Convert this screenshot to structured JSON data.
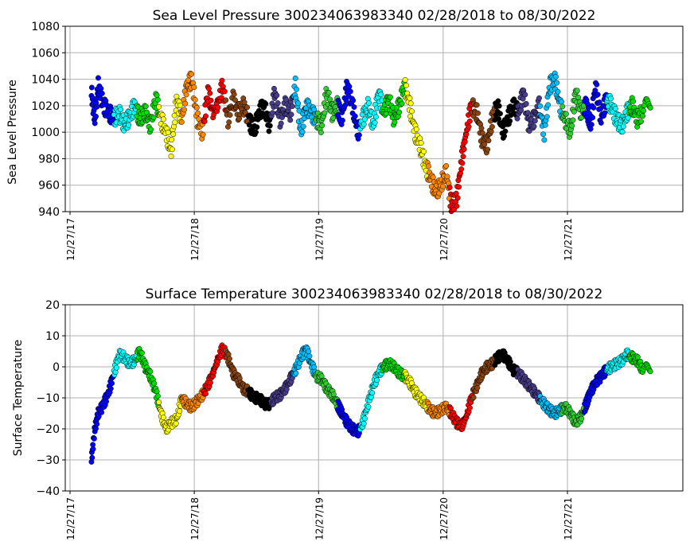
{
  "chart_data": [
    {
      "type": "scatter",
      "title": "Sea Level Pressure 300234063983340  02/28/2018 to 08/30/2022",
      "xlabel": "",
      "ylabel": "Sea Level Pressure",
      "xlim": [
        "2017-12-13",
        "2022-12-01"
      ],
      "ylim": [
        940,
        1080
      ],
      "yticks": [
        "940",
        "960",
        "980",
        "1000",
        "1020",
        "1040",
        "1060",
        "1080"
      ],
      "xticks": [
        "12/27/17",
        "12/27/18",
        "12/27/19",
        "12/27/20",
        "12/27/21"
      ],
      "grid": true,
      "legend": "none",
      "colors": [
        "#0000ff",
        "#00ffff",
        "#00dd00",
        "#ffff00",
        "#ff8800",
        "#ff0000",
        "#8b4513",
        "#000000",
        "#483d8b",
        "#00bfff",
        "#32cd32"
      ],
      "series": [
        {
          "x": [
            "2018-02-28",
            "2018-03-10",
            "2018-03-20",
            "2018-04-05",
            "2018-04-20",
            "2018-05-05",
            "2018-05-20",
            "2018-06-05",
            "2018-06-20",
            "2018-07-05",
            "2018-07-20",
            "2018-08-05",
            "2018-08-20",
            "2018-09-05",
            "2018-09-20",
            "2018-10-05",
            "2018-10-20",
            "2018-11-05",
            "2018-11-20",
            "2018-12-05",
            "2018-12-20",
            "2019-01-05",
            "2019-01-20",
            "2019-02-05",
            "2019-02-20",
            "2019-03-05",
            "2019-03-20",
            "2019-04-05",
            "2019-04-20",
            "2019-05-05",
            "2019-05-20",
            "2019-06-05",
            "2019-06-20",
            "2019-07-05",
            "2019-07-20",
            "2019-08-05",
            "2019-08-20",
            "2019-09-05",
            "2019-09-20",
            "2019-10-05",
            "2019-10-20",
            "2019-11-05",
            "2019-11-20",
            "2019-12-05",
            "2019-12-20",
            "2020-01-05",
            "2020-01-20",
            "2020-02-05",
            "2020-02-20",
            "2020-03-05",
            "2020-03-20",
            "2020-04-05",
            "2020-04-20",
            "2020-05-05",
            "2020-05-20",
            "2020-06-05",
            "2020-06-20",
            "2020-07-05",
            "2020-07-20",
            "2020-08-05",
            "2020-08-20",
            "2020-09-05",
            "2020-09-20",
            "2020-10-05",
            "2020-10-20",
            "2020-11-05",
            "2020-11-20",
            "2020-12-05",
            "2020-12-20",
            "2021-01-05",
            "2021-01-20",
            "2021-02-05",
            "2021-02-20",
            "2021-03-05",
            "2021-03-20",
            "2021-04-05",
            "2021-04-20",
            "2021-05-05",
            "2021-05-20",
            "2021-06-05",
            "2021-06-20",
            "2021-07-05",
            "2021-07-20",
            "2021-08-05",
            "2021-08-20",
            "2021-09-05",
            "2021-09-20",
            "2021-10-05",
            "2021-10-20",
            "2021-11-05",
            "2021-11-20",
            "2021-12-05",
            "2021-12-20",
            "2022-01-05",
            "2022-01-20",
            "2022-02-05",
            "2022-02-20",
            "2022-03-05",
            "2022-03-20",
            "2022-04-05",
            "2022-04-20",
            "2022-05-05",
            "2022-05-20",
            "2022-06-05",
            "2022-06-20",
            "2022-07-05",
            "2022-07-20",
            "2022-08-05",
            "2022-08-30"
          ],
          "y": [
            1030,
            1010,
            1035,
            1020,
            1015,
            1010,
            1015,
            1005,
            1012,
            1020,
            1010,
            1015,
            1005,
            1025,
            1010,
            1000,
            985,
            1025,
            1010,
            1035,
            1040,
            1010,
            1000,
            1030,
            1015,
            1020,
            1035,
            1010,
            1025,
            1015,
            1020,
            1010,
            1000,
            1015,
            1020,
            1005,
            1030,
            1010,
            1020,
            1015,
            1035,
            1000,
            1020,
            1015,
            1010,
            1005,
            1030,
            1015,
            1020,
            1010,
            1035,
            1020,
            1000,
            1010,
            1020,
            1005,
            1030,
            1015,
            1025,
            1010,
            1020,
            1035,
            1020,
            1000,
            990,
            975,
            965,
            955,
            960,
            970,
            945,
            950,
            980,
            1000,
            1020,
            1015,
            995,
            990,
            1010,
            1020,
            1000,
            1010,
            1020,
            1015,
            1030,
            1005,
            1010,
            1020,
            1000,
            1035,
            1040,
            1020,
            1010,
            1000,
            1030,
            1015,
            1020,
            1005,
            1035,
            1010,
            1025,
            1020,
            1010,
            1005,
            1015,
            1020,
            1010,
            1015,
            1025
          ],
          "color_groups": 25
        }
      ]
    },
    {
      "type": "scatter",
      "title": "Surface Temperature 300234063983340  02/28/2018 to 08/30/2022",
      "xlabel": "",
      "ylabel": "Surface Temperature",
      "xlim": [
        "2017-12-13",
        "2022-12-01"
      ],
      "ylim": [
        -40,
        20
      ],
      "yticks": [
        "−40",
        "−30",
        "−20",
        "−10",
        "0",
        "10",
        "20"
      ],
      "xticks": [
        "12/27/17",
        "12/27/18",
        "12/27/19",
        "12/27/20",
        "12/27/21"
      ],
      "grid": true,
      "legend": "none",
      "series": [
        {
          "x": [
            "2018-02-28",
            "2018-03-10",
            "2018-03-20",
            "2018-04-05",
            "2018-04-20",
            "2018-05-05",
            "2018-05-20",
            "2018-06-05",
            "2018-06-20",
            "2018-07-05",
            "2018-07-20",
            "2018-08-05",
            "2018-08-20",
            "2018-09-05",
            "2018-09-20",
            "2018-10-05",
            "2018-10-20",
            "2018-11-05",
            "2018-11-20",
            "2018-12-05",
            "2018-12-20",
            "2019-01-05",
            "2019-01-20",
            "2019-02-05",
            "2019-02-20",
            "2019-03-05",
            "2019-03-20",
            "2019-04-05",
            "2019-04-20",
            "2019-05-05",
            "2019-05-20",
            "2019-06-05",
            "2019-06-20",
            "2019-07-05",
            "2019-07-20",
            "2019-08-05",
            "2019-08-20",
            "2019-09-05",
            "2019-09-20",
            "2019-10-05",
            "2019-10-20",
            "2019-11-05",
            "2019-11-20",
            "2019-12-05",
            "2019-12-20",
            "2020-01-05",
            "2020-01-20",
            "2020-02-05",
            "2020-02-20",
            "2020-03-05",
            "2020-03-20",
            "2020-04-05",
            "2020-04-20",
            "2020-05-05",
            "2020-05-20",
            "2020-06-05",
            "2020-06-20",
            "2020-07-05",
            "2020-07-20",
            "2020-08-05",
            "2020-08-20",
            "2020-09-05",
            "2020-09-20",
            "2020-10-05",
            "2020-10-20",
            "2020-11-05",
            "2020-11-20",
            "2020-12-05",
            "2020-12-20",
            "2021-01-05",
            "2021-01-20",
            "2021-02-05",
            "2021-02-20",
            "2021-03-05",
            "2021-03-20",
            "2021-04-05",
            "2021-04-20",
            "2021-05-05",
            "2021-05-20",
            "2021-06-05",
            "2021-06-20",
            "2021-07-05",
            "2021-07-20",
            "2021-08-05",
            "2021-08-20",
            "2021-09-05",
            "2021-09-20",
            "2021-10-05",
            "2021-10-20",
            "2021-11-05",
            "2021-11-20",
            "2021-12-05",
            "2021-12-20",
            "2022-01-05",
            "2022-01-20",
            "2022-02-05",
            "2022-02-20",
            "2022-03-05",
            "2022-03-20",
            "2022-04-05",
            "2022-04-20",
            "2022-05-05",
            "2022-05-20",
            "2022-06-05",
            "2022-06-20",
            "2022-07-05",
            "2022-07-20",
            "2022-08-05",
            "2022-08-30"
          ],
          "y": [
            -30,
            -20,
            -15,
            -12,
            -8,
            -2,
            4,
            3,
            1,
            2,
            5,
            0,
            -3,
            -8,
            -15,
            -20,
            -18,
            -17,
            -10,
            -12,
            -13,
            -11,
            -9,
            -6,
            -2,
            2,
            6,
            3,
            -2,
            -4,
            -7,
            -8,
            -10,
            -10,
            -12,
            -12,
            -10,
            -9,
            -7,
            -4,
            -1,
            3,
            6,
            1,
            -3,
            -4,
            -7,
            -9,
            -12,
            -15,
            -18,
            -20,
            -21,
            -18,
            -12,
            -6,
            -2,
            0,
            1,
            0,
            -2,
            -3,
            -5,
            -8,
            -10,
            -12,
            -14,
            -15,
            -14,
            -13,
            -15,
            -18,
            -19,
            -16,
            -10,
            -6,
            -2,
            0,
            1,
            3,
            4,
            2,
            -1,
            -2,
            -4,
            -6,
            -8,
            -10,
            -12,
            -14,
            -15,
            -14,
            -13,
            -15,
            -18,
            -16,
            -12,
            -8,
            -5,
            -3,
            -1,
            0,
            1,
            2,
            4,
            3,
            2,
            -1,
            0
          ],
          "color_groups": 25
        }
      ]
    }
  ]
}
